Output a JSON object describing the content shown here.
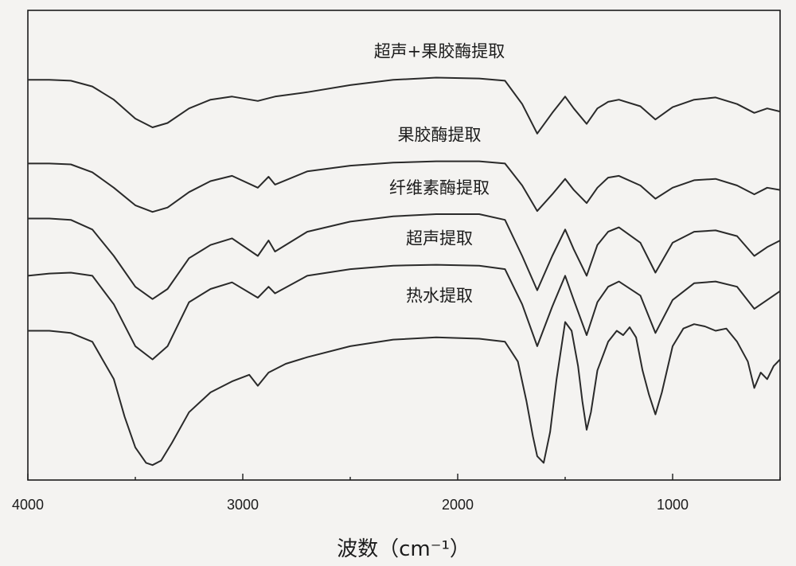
{
  "chart_data": {
    "type": "line",
    "title": "",
    "xlabel": "波数（cm⁻¹）",
    "ylabel": "",
    "xlim": [
      4000,
      500
    ],
    "x_reversed": true,
    "x_ticks": [
      "4000",
      "3000",
      "2000",
      "1000"
    ],
    "x_tick_values": [
      4000,
      3000,
      2000,
      1000
    ],
    "y_axis_shown": false,
    "ylim": [
      0,
      10
    ],
    "grid": false,
    "legend": "none",
    "series": [
      {
        "name": "超声+果胶酶提取",
        "x": [
          4000,
          3900,
          3800,
          3700,
          3600,
          3500,
          3420,
          3350,
          3250,
          3150,
          3050,
          2930,
          2850,
          2700,
          2500,
          2300,
          2100,
          1900,
          1780,
          1700,
          1630,
          1560,
          1500,
          1460,
          1400,
          1350,
          1300,
          1250,
          1150,
          1080,
          1000,
          900,
          800,
          700,
          620,
          560,
          500
        ],
        "y": [
          9.0,
          9.0,
          8.98,
          8.85,
          8.55,
          8.12,
          7.92,
          8.02,
          8.35,
          8.55,
          8.62,
          8.52,
          8.62,
          8.72,
          8.88,
          9.0,
          9.05,
          9.03,
          8.98,
          8.45,
          7.78,
          8.25,
          8.62,
          8.35,
          8.0,
          8.35,
          8.5,
          8.55,
          8.4,
          8.1,
          8.38,
          8.55,
          8.6,
          8.45,
          8.25,
          8.35,
          8.28
        ]
      },
      {
        "name": "果胶酶提取",
        "x": [
          4000,
          3900,
          3800,
          3700,
          3600,
          3500,
          3420,
          3350,
          3250,
          3150,
          3050,
          2930,
          2880,
          2850,
          2700,
          2500,
          2300,
          2100,
          1900,
          1780,
          1700,
          1630,
          1560,
          1500,
          1460,
          1400,
          1350,
          1300,
          1250,
          1150,
          1080,
          1000,
          900,
          800,
          700,
          620,
          560,
          500
        ],
        "y": [
          7.1,
          7.1,
          7.08,
          6.9,
          6.55,
          6.15,
          6.0,
          6.1,
          6.45,
          6.7,
          6.82,
          6.55,
          6.8,
          6.62,
          6.92,
          7.05,
          7.12,
          7.15,
          7.15,
          7.1,
          6.6,
          6.02,
          6.4,
          6.75,
          6.5,
          6.2,
          6.55,
          6.78,
          6.82,
          6.6,
          6.3,
          6.55,
          6.72,
          6.75,
          6.6,
          6.4,
          6.55,
          6.5
        ]
      },
      {
        "name": "纤维素酶提取",
        "x": [
          4000,
          3900,
          3800,
          3700,
          3600,
          3500,
          3420,
          3350,
          3250,
          3150,
          3050,
          2930,
          2880,
          2850,
          2700,
          2500,
          2300,
          2100,
          1900,
          1780,
          1700,
          1630,
          1560,
          1500,
          1460,
          1400,
          1350,
          1300,
          1250,
          1150,
          1080,
          1000,
          900,
          800,
          700,
          620,
          560,
          500
        ],
        "y": [
          5.85,
          5.85,
          5.82,
          5.6,
          5.0,
          4.3,
          4.02,
          4.25,
          4.95,
          5.25,
          5.4,
          5.0,
          5.35,
          5.1,
          5.55,
          5.78,
          5.9,
          5.95,
          5.95,
          5.82,
          5.0,
          4.22,
          5.0,
          5.6,
          5.15,
          4.55,
          5.25,
          5.55,
          5.65,
          5.3,
          4.62,
          5.3,
          5.55,
          5.58,
          5.45,
          5.0,
          5.2,
          5.35
        ]
      },
      {
        "name": "超声提取",
        "x": [
          4000,
          3900,
          3800,
          3700,
          3600,
          3500,
          3420,
          3350,
          3250,
          3150,
          3050,
          2930,
          2880,
          2850,
          2700,
          2500,
          2300,
          2100,
          1900,
          1780,
          1700,
          1630,
          1560,
          1500,
          1460,
          1400,
          1350,
          1300,
          1250,
          1150,
          1080,
          1000,
          900,
          800,
          700,
          620,
          560,
          500
        ],
        "y": [
          4.55,
          4.6,
          4.62,
          4.55,
          3.9,
          2.95,
          2.65,
          2.95,
          3.95,
          4.25,
          4.4,
          4.05,
          4.3,
          4.15,
          4.55,
          4.7,
          4.78,
          4.8,
          4.78,
          4.7,
          3.9,
          2.95,
          3.85,
          4.55,
          4.0,
          3.2,
          3.95,
          4.3,
          4.42,
          4.1,
          3.25,
          4.0,
          4.38,
          4.42,
          4.3,
          3.8,
          4.0,
          4.2
        ]
      },
      {
        "name": "热水提取",
        "x": [
          4000,
          3900,
          3800,
          3700,
          3600,
          3550,
          3500,
          3450,
          3420,
          3380,
          3330,
          3250,
          3150,
          3050,
          2970,
          2930,
          2880,
          2800,
          2700,
          2500,
          2300,
          2100,
          1900,
          1780,
          1720,
          1680,
          1650,
          1630,
          1600,
          1570,
          1540,
          1500,
          1470,
          1440,
          1420,
          1400,
          1380,
          1350,
          1300,
          1260,
          1230,
          1200,
          1170,
          1140,
          1110,
          1080,
          1050,
          1000,
          950,
          900,
          850,
          800,
          750,
          700,
          650,
          620,
          590,
          560,
          530,
          500
        ],
        "y": [
          3.3,
          3.3,
          3.25,
          3.05,
          2.2,
          1.35,
          0.65,
          0.3,
          0.25,
          0.35,
          0.75,
          1.45,
          1.9,
          2.15,
          2.3,
          2.05,
          2.35,
          2.55,
          2.7,
          2.95,
          3.1,
          3.15,
          3.12,
          3.05,
          2.6,
          1.7,
          0.9,
          0.45,
          0.3,
          1.0,
          2.2,
          3.5,
          3.3,
          2.5,
          1.7,
          1.05,
          1.45,
          2.4,
          3.05,
          3.3,
          3.2,
          3.38,
          3.15,
          2.4,
          1.85,
          1.4,
          1.9,
          2.95,
          3.35,
          3.45,
          3.4,
          3.3,
          3.35,
          3.05,
          2.6,
          2.0,
          2.35,
          2.2,
          2.5,
          2.65
        ]
      }
    ]
  }
}
